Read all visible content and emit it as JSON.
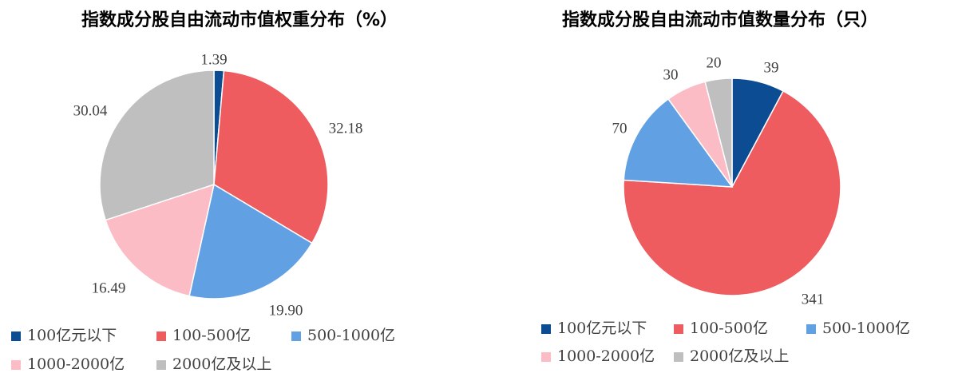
{
  "chart_data": [
    {
      "type": "pie",
      "title": "指数成分股自由流动市值权重分布（%）",
      "categories": [
        "100亿元以下",
        "100-500亿",
        "500-1000亿",
        "1000-2000亿",
        "2000亿及以上"
      ],
      "values": [
        1.39,
        32.18,
        19.9,
        16.49,
        30.04
      ],
      "labels": [
        "1.39",
        "32.18",
        "19.90",
        "16.49",
        "30.04"
      ],
      "colors": [
        "#0b4c92",
        "#ee5c5f",
        "#62a0e4",
        "#fbbcc6",
        "#bfbfbf"
      ],
      "legend_position": "bottom"
    },
    {
      "type": "pie",
      "title": "指数成分股自由流动市值数量分布（只）",
      "categories": [
        "100亿元以下",
        "100-500亿",
        "500-1000亿",
        "1000-2000亿",
        "2000亿及以上"
      ],
      "values": [
        39,
        341,
        70,
        30,
        20
      ],
      "labels": [
        "39",
        "341",
        "70",
        "30",
        "20"
      ],
      "colors": [
        "#0b4c92",
        "#ee5c5f",
        "#62a0e4",
        "#fbbcc6",
        "#bfbfbf"
      ],
      "legend_position": "bottom"
    }
  ]
}
